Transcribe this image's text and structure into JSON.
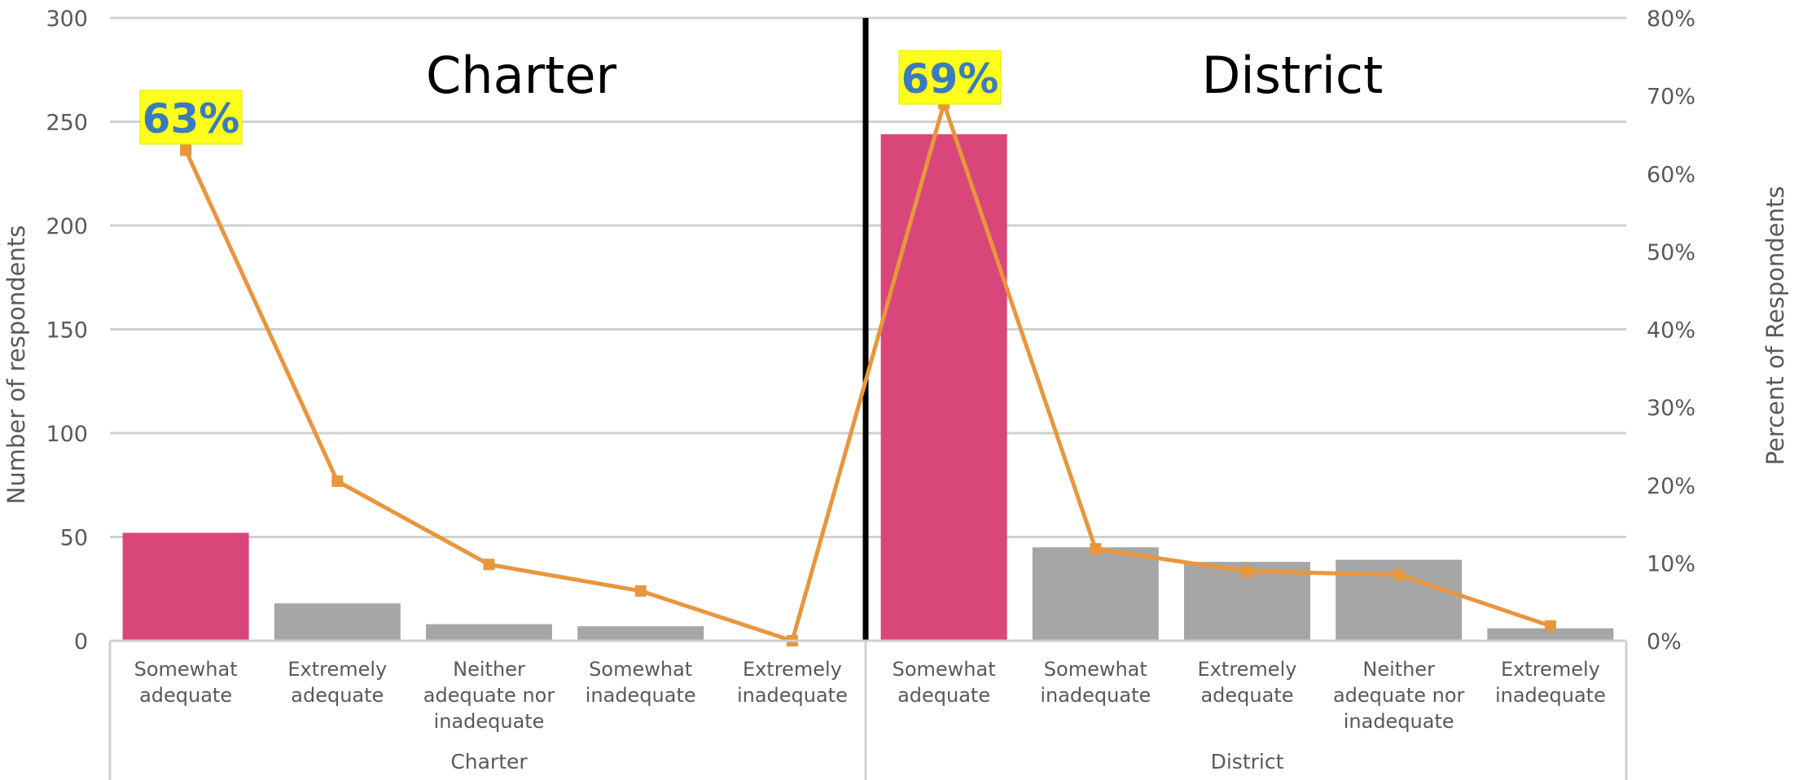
{
  "chart_data": {
    "type": "bar",
    "ylabel": "Number of respondents",
    "y2label": "Percent of Respondents",
    "ylim": [
      0,
      300
    ],
    "y2lim": [
      0,
      0.8
    ],
    "yticks": [
      "300",
      "250",
      "200",
      "150",
      "100",
      "50",
      "0"
    ],
    "y2ticks": [
      "80%",
      "70%",
      "60%",
      "50%",
      "40%",
      "30%",
      "20%",
      "10%",
      "0%"
    ],
    "grid": true,
    "colors": {
      "highlight": "#d9467a",
      "bar": "#a6a6a6",
      "line": "#e8963c",
      "callout_bg": "#ffff1a",
      "callout_text": "#3a7bbf"
    },
    "panels": [
      {
        "title": "Charter",
        "group_label": "Charter",
        "callout": "63%",
        "categories": [
          {
            "lines": [
              "Somewhat",
              "adequate"
            ],
            "count": 52,
            "percent": 0.63,
            "highlight": true
          },
          {
            "lines": [
              "Extremely",
              "adequate"
            ],
            "count": 18,
            "percent": 0.205,
            "highlight": false
          },
          {
            "lines": [
              "Neither",
              "adequate nor",
              "inadequate"
            ],
            "count": 8,
            "percent": 0.098,
            "highlight": false
          },
          {
            "lines": [
              "Somewhat",
              "inadequate"
            ],
            "count": 7,
            "percent": 0.064,
            "highlight": false
          },
          {
            "lines": [
              "Extremely",
              "inadequate"
            ],
            "count": 0,
            "percent": 0.0,
            "highlight": false
          }
        ]
      },
      {
        "title": "District",
        "group_label": "District",
        "callout": "69%",
        "categories": [
          {
            "lines": [
              "Somewhat",
              "adequate"
            ],
            "count": 244,
            "percent": 0.69,
            "highlight": true
          },
          {
            "lines": [
              "Somewhat",
              "inadequate"
            ],
            "count": 45,
            "percent": 0.118,
            "highlight": false
          },
          {
            "lines": [
              "Extremely",
              "adequate"
            ],
            "count": 38,
            "percent": 0.089,
            "highlight": false
          },
          {
            "lines": [
              "Neither",
              "adequate nor",
              "inadequate"
            ],
            "count": 39,
            "percent": 0.085,
            "highlight": false
          },
          {
            "lines": [
              "Extremely",
              "inadequate"
            ],
            "count": 6,
            "percent": 0.019,
            "highlight": false
          }
        ]
      }
    ]
  }
}
